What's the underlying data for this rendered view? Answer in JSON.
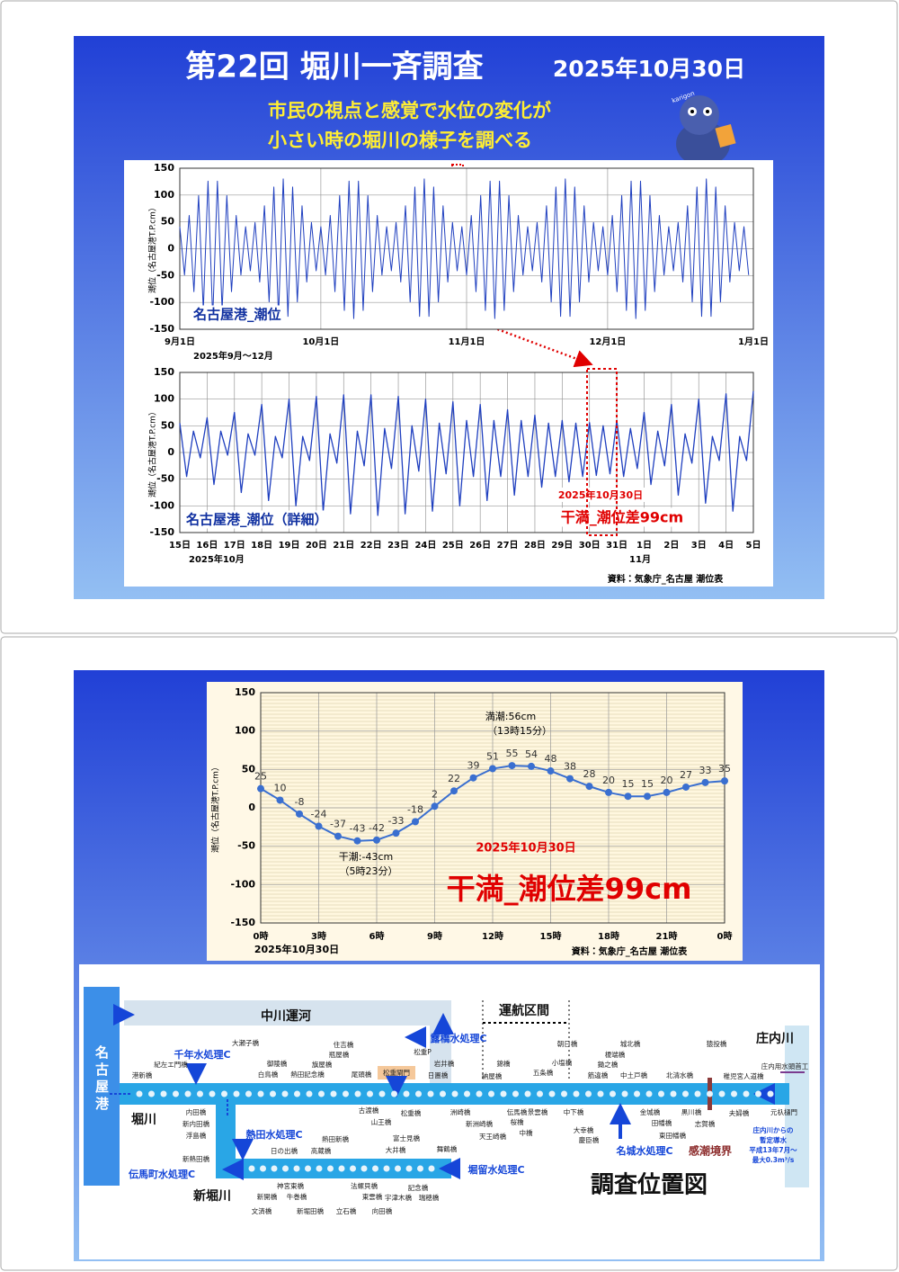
{
  "slide1": {
    "title": "第22回 堀川一斉調査",
    "date": "2025年10月30日",
    "subtitle_lines": [
      "市民の視点と感覚で水位の変化が",
      "小さい時の堀川の様子を調べる"
    ],
    "mascot_text": "karigon"
  },
  "chart_data": [
    {
      "type": "line",
      "y_label": "潮位（名古屋港T.P.cm）",
      "color": "#1f3fbf",
      "grid": true,
      "xlim": [
        0,
        122
      ],
      "ylim": [
        -150,
        150
      ],
      "yticks": [
        150,
        100,
        50,
        0,
        -50,
        -100,
        -150
      ],
      "xticks": [
        {
          "value": 0,
          "label": "9月1日"
        },
        {
          "value": 30,
          "label": "10月1日"
        },
        {
          "value": 61,
          "label": "11月1日"
        },
        {
          "value": 91,
          "label": "12月1日"
        },
        {
          "value": 122,
          "label": "1月1日"
        }
      ],
      "annotations": [
        "名古屋港_潮位",
        "2025年9月～12月"
      ],
      "x": [
        0,
        1,
        2,
        3,
        4,
        5,
        6,
        7,
        8,
        9,
        10,
        11,
        12,
        13,
        14,
        15,
        16,
        17,
        18,
        19,
        20,
        21,
        22,
        23,
        24,
        25,
        26,
        27,
        28,
        29,
        30,
        31,
        32,
        33,
        34,
        35,
        36,
        37,
        38,
        39,
        40,
        41,
        42,
        43,
        44,
        45,
        46,
        47,
        48,
        49,
        50,
        51,
        52,
        53,
        54,
        55,
        56,
        57,
        58,
        59,
        60,
        61,
        62,
        63,
        64,
        65,
        66,
        67,
        68,
        69,
        70,
        71,
        72,
        73,
        74,
        75,
        76,
        77,
        78,
        79,
        80,
        81,
        82,
        83,
        84,
        85,
        86,
        87,
        88,
        89,
        90,
        91,
        92,
        93,
        94,
        95,
        96,
        97,
        98,
        99,
        100,
        101,
        102,
        103,
        104,
        105,
        106,
        107,
        108,
        109,
        110,
        111,
        112,
        113,
        114,
        115,
        116,
        117,
        118,
        119,
        120,
        121
      ],
      "values": [
        41,
        -49,
        62,
        -80,
        99,
        -115,
        126,
        -130,
        126,
        -115,
        99,
        -80,
        62,
        -49,
        41,
        -41,
        49,
        -62,
        80,
        -99,
        115,
        -126,
        130,
        -126,
        115,
        -99,
        80,
        -62,
        49,
        -41,
        41,
        -49,
        62,
        -80,
        99,
        -115,
        126,
        -130,
        126,
        -115,
        99,
        -80,
        62,
        -49,
        41,
        -41,
        49,
        -62,
        80,
        -99,
        115,
        -126,
        130,
        -126,
        115,
        -99,
        80,
        -62,
        49,
        -41,
        41,
        -49,
        62,
        -80,
        99,
        -115,
        126,
        -130,
        126,
        -115,
        99,
        -80,
        62,
        -49,
        41,
        -41,
        49,
        -62,
        80,
        -99,
        115,
        -126,
        130,
        -126,
        115,
        -99,
        80,
        -62,
        49,
        -41,
        41,
        -49,
        62,
        -80,
        99,
        -115,
        126,
        -130,
        126,
        -115,
        99,
        -80,
        62,
        -49,
        41,
        -41,
        49,
        -62,
        80,
        -99,
        115,
        -126,
        130,
        -126,
        115,
        -99,
        80,
        -62,
        49,
        -41,
        41,
        -49
      ]
    },
    {
      "type": "line",
      "y_label": "潮位（名古屋港T.P.cm）",
      "color": "#1f3fbf",
      "grid": true,
      "xlim": [
        0,
        21
      ],
      "ylim": [
        -150,
        150
      ],
      "yticks": [
        150,
        100,
        50,
        0,
        -50,
        -100,
        -150
      ],
      "xticks": [
        {
          "value": 0,
          "label": "15日"
        },
        {
          "value": 1,
          "label": "16日"
        },
        {
          "value": 2,
          "label": "17日"
        },
        {
          "value": 3,
          "label": "18日"
        },
        {
          "value": 4,
          "label": "19日"
        },
        {
          "value": 5,
          "label": "20日"
        },
        {
          "value": 6,
          "label": "21日"
        },
        {
          "value": 7,
          "label": "22日"
        },
        {
          "value": 8,
          "label": "23日"
        },
        {
          "value": 9,
          "label": "24日"
        },
        {
          "value": 10,
          "label": "25日"
        },
        {
          "value": 11,
          "label": "26日"
        },
        {
          "value": 12,
          "label": "27日"
        },
        {
          "value": 13,
          "label": "28日"
        },
        {
          "value": 14,
          "label": "29日"
        },
        {
          "value": 15,
          "label": "30日"
        },
        {
          "value": 16,
          "label": "31日"
        },
        {
          "value": 17,
          "label": "1日"
        },
        {
          "value": 18,
          "label": "2日"
        },
        {
          "value": 19,
          "label": "3日"
        },
        {
          "value": 20,
          "label": "4日"
        },
        {
          "value": 21,
          "label": "5日"
        }
      ],
      "annotations": [
        "名古屋港_潮位（詳細）",
        "2025年10月30日",
        "干満_潮位差99cm",
        "2025年10月",
        "11月",
        "資料：気象庁_名古屋 潮位表"
      ],
      "x": [
        0,
        0.25,
        0.5,
        0.75,
        1,
        1.25,
        1.5,
        1.75,
        2,
        2.25,
        2.5,
        2.75,
        3,
        3.25,
        3.5,
        3.75,
        4,
        4.25,
        4.5,
        4.75,
        5,
        5.25,
        5.5,
        5.75,
        6,
        6.25,
        6.5,
        6.75,
        7,
        7.25,
        7.5,
        7.75,
        8,
        8.25,
        8.5,
        8.75,
        9,
        9.25,
        9.5,
        9.75,
        10,
        10.25,
        10.5,
        10.75,
        11,
        11.25,
        11.5,
        11.75,
        12,
        12.25,
        12.5,
        12.75,
        13,
        13.25,
        13.5,
        13.75,
        14,
        14.25,
        14.5,
        14.75,
        15,
        15.25,
        15.5,
        15.75,
        16,
        16.25,
        16.5,
        16.75,
        17,
        17.25,
        17.5,
        17.75,
        18,
        18.25,
        18.5,
        18.75,
        19,
        19.25,
        19.5,
        19.75,
        20,
        20.25,
        20.5,
        20.75,
        21
      ],
      "values": [
        55,
        -45,
        40,
        -10,
        65,
        -60,
        40,
        -5,
        75,
        -75,
        35,
        -5,
        90,
        -90,
        30,
        -10,
        100,
        -100,
        30,
        -15,
        105,
        -110,
        35,
        -20,
        108,
        -115,
        40,
        -25,
        108,
        -118,
        45,
        -30,
        105,
        -115,
        50,
        -35,
        100,
        -110,
        55,
        -40,
        95,
        -100,
        60,
        -45,
        90,
        -90,
        60,
        -45,
        80,
        -80,
        60,
        -45,
        70,
        -65,
        55,
        -45,
        60,
        -55,
        55,
        -45,
        56,
        -43,
        50,
        -40,
        60,
        -45,
        45,
        -30,
        75,
        -60,
        40,
        -25,
        90,
        -80,
        35,
        -20,
        100,
        -95,
        30,
        -15,
        110,
        -110,
        30,
        -15,
        115
      ]
    },
    {
      "type": "line",
      "y_label": "潮位（名古屋港T.P.cm）",
      "color": "#3a6fd0",
      "grid": true,
      "markers": true,
      "data_labels": true,
      "xlim": [
        0,
        24
      ],
      "ylim": [
        -150,
        150
      ],
      "yticks": [
        150,
        100,
        50,
        0,
        -50,
        -100,
        -150
      ],
      "xticks": [
        {
          "value": 0,
          "label": "0時"
        },
        {
          "value": 3,
          "label": "3時"
        },
        {
          "value": 6,
          "label": "6時"
        },
        {
          "value": 9,
          "label": "9時"
        },
        {
          "value": 12,
          "label": "12時"
        },
        {
          "value": 15,
          "label": "15時"
        },
        {
          "value": 18,
          "label": "18時"
        },
        {
          "value": 21,
          "label": "21時"
        },
        {
          "value": 24,
          "label": "0時"
        }
      ],
      "annotations": [
        "満潮:56cm",
        "（13時15分）",
        "干潮:-43cm",
        "（5時23分）",
        "2025年10月30日",
        "干満_潮位差99cm",
        "2025年10月30日",
        "資料：気象庁_名古屋 潮位表"
      ],
      "x": [
        0,
        1,
        2,
        3,
        4,
        5,
        6,
        7,
        8,
        9,
        10,
        11,
        12,
        13,
        14,
        15,
        16,
        17,
        18,
        19,
        20,
        21,
        22,
        23,
        24
      ],
      "values": [
        25,
        10,
        -8,
        -24,
        -37,
        -43,
        -42,
        -33,
        -18,
        2,
        22,
        39,
        51,
        55,
        54,
        48,
        38,
        28,
        20,
        15,
        15,
        20,
        27,
        33,
        35
      ]
    }
  ],
  "map": {
    "labels": [
      "名古屋港",
      "中川運河",
      "運航区間",
      "庄内川",
      "堀川",
      "新堀川",
      "調査位置図",
      "千年水処理C",
      "露橋水処理C",
      "熱田水処理C",
      "伝馬町水処理C",
      "堀留水処理C",
      "名城水処理C",
      "感潮境界",
      "松重閘門",
      "庄内川からの",
      "暫定導水",
      "平成13年7月～",
      "最大0.3m³/s",
      "大瀬子橋",
      "紀左エ門橋",
      "港新橋",
      "御陵橋",
      "白鳥橋",
      "熱田記念橋",
      "住吉橋",
      "瓶屋橋",
      "旗屋橋",
      "尾頭橋",
      "松重P",
      "岩井橋",
      "日置橋",
      "錦橋",
      "納屋橋",
      "五条橋",
      "朝日橋",
      "小塩橋",
      "城北橋",
      "榎端橋",
      "鋤之橋",
      "筋違橋",
      "中土戸橋",
      "北清水橋",
      "猿投橋",
      "稚児宮人道橋",
      "庄内用水頭首工",
      "元杁樋門",
      "内田橋",
      "新内田橋",
      "浮島橋",
      "新熱田橋",
      "古渡橋",
      "山王橋",
      "松重橋",
      "洲崎橋",
      "新洲崎橋",
      "天王崎橋",
      "伝馬橋",
      "桜橋",
      "中橋",
      "景雲橋",
      "中下橋",
      "大幸橋",
      "慶臣橋",
      "金城橋",
      "田幡橋",
      "東田幡橋",
      "黒川橋",
      "志賀橋",
      "夫婦橋",
      "熱田新橋",
      "日の出橋",
      "高蔵橋",
      "富士見橋",
      "大井橋",
      "舞鶴橋",
      "神宮東橋",
      "牛巻橋",
      "新開橋",
      "文済橋",
      "新堀田橋",
      "立石橋",
      "法螺貝橋",
      "東雲橋",
      "向田橋",
      "記念橋",
      "宇津木橋",
      "瑞穂橋"
    ]
  }
}
